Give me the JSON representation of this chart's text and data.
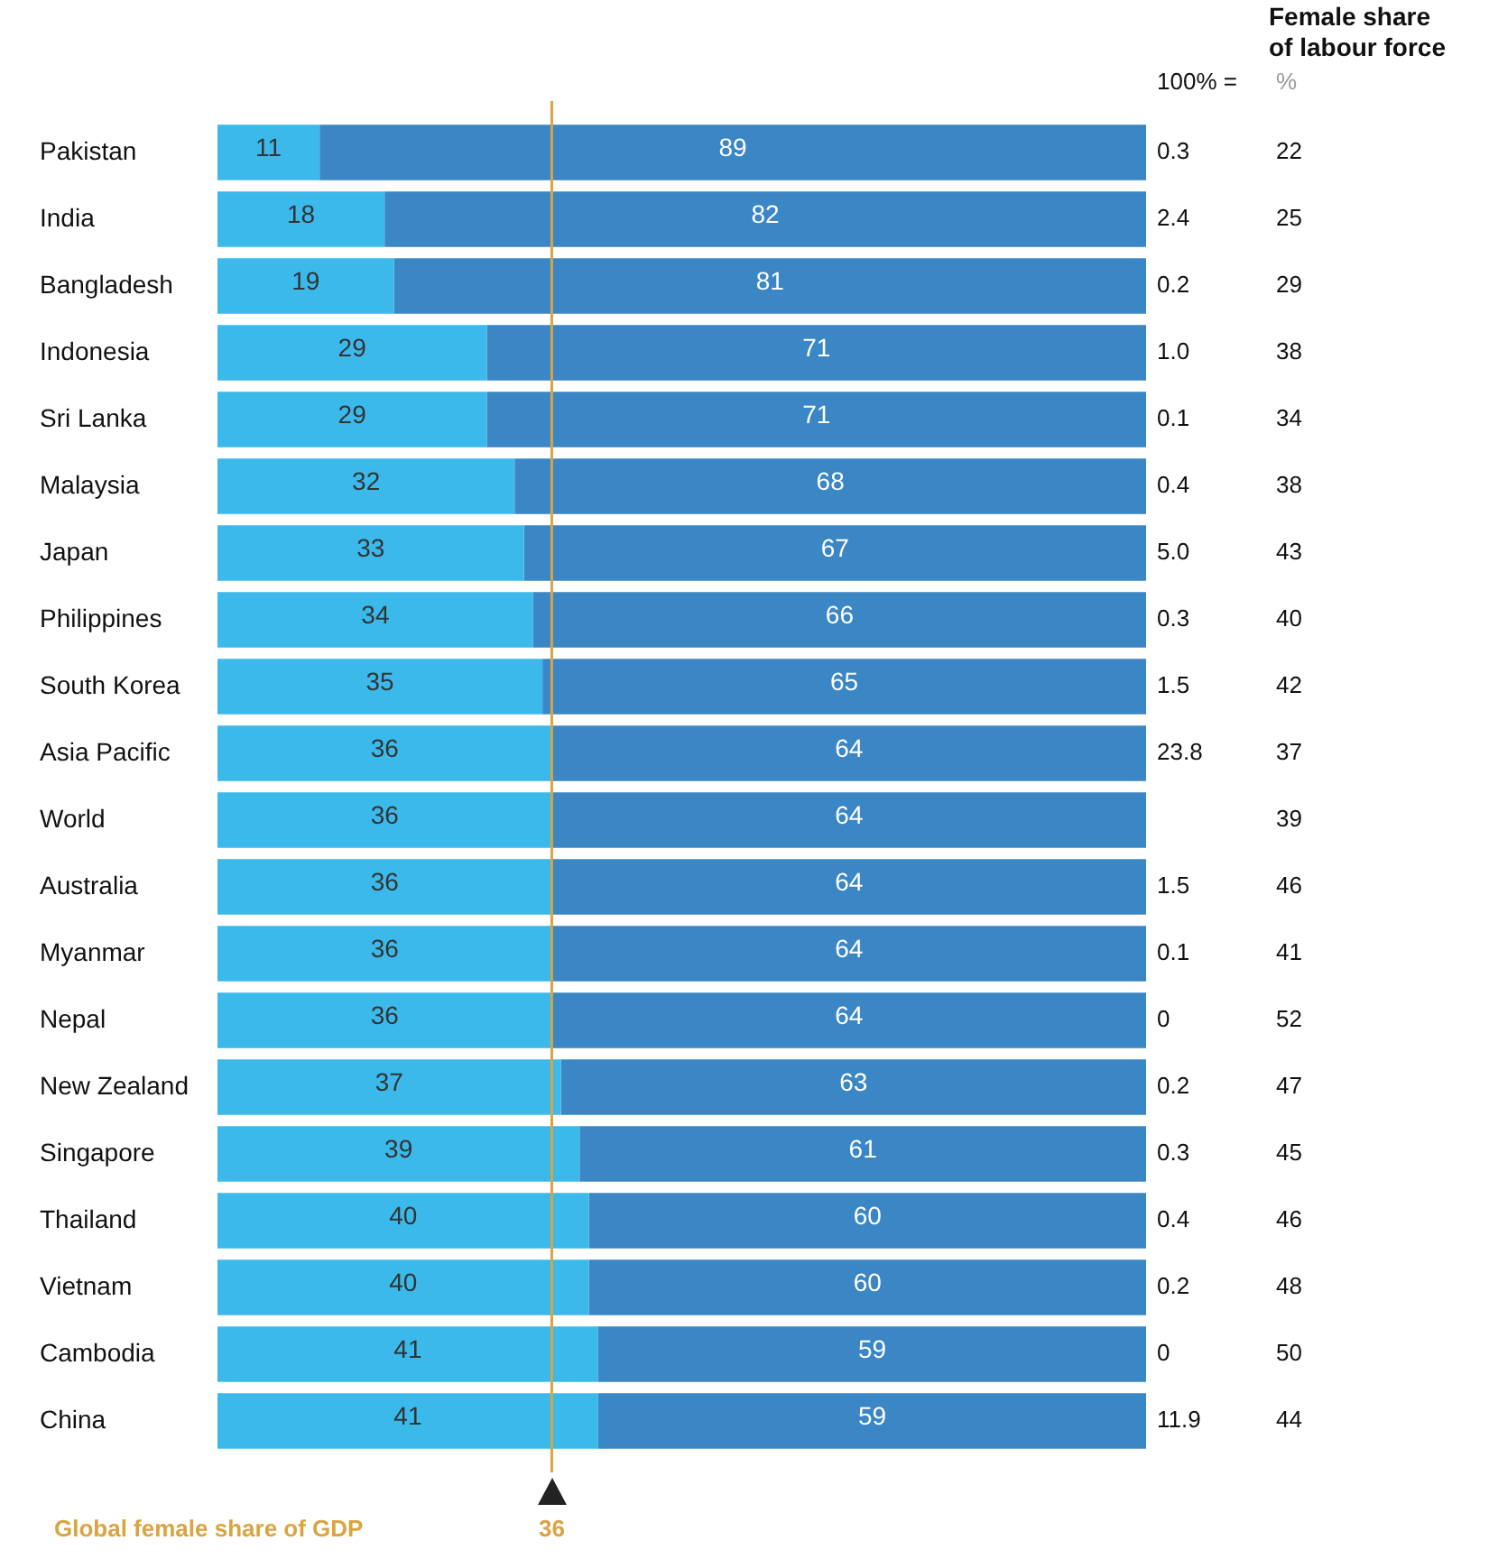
{
  "chart_data": {
    "type": "bar",
    "orientation": "horizontal",
    "stacked": true,
    "data_labels": true,
    "grid": false,
    "legend": false,
    "tick_labels": "y",
    "xlim": [
      0,
      100
    ],
    "categories": [
      "Pakistan",
      "India",
      "Bangladesh",
      "Indonesia",
      "Sri Lanka",
      "Malaysia",
      "Japan",
      "Philippines",
      "South Korea",
      "Asia Pacific",
      "World",
      "Australia",
      "Myanmar",
      "Nepal",
      "New Zealand",
      "Singapore",
      "Thailand",
      "Vietnam",
      "Cambodia",
      "China"
    ],
    "series": [
      {
        "color": "#3bb9eb",
        "values": [
          11,
          18,
          19,
          29,
          29,
          32,
          33,
          34,
          35,
          36,
          36,
          36,
          36,
          36,
          37,
          39,
          40,
          40,
          41,
          41
        ]
      },
      {
        "color": "#3b86c4",
        "values": [
          89,
          82,
          81,
          71,
          71,
          68,
          67,
          66,
          65,
          64,
          64,
          64,
          64,
          64,
          63,
          61,
          60,
          60,
          59,
          59
        ]
      }
    ],
    "ref_lines": [
      {
        "axis": "x",
        "value": 36,
        "label": "Global female share of GDP",
        "color": "#d9a441"
      }
    ],
    "annotations": [
      "100% =",
      "Female share of labour force",
      "%",
      "0.3",
      "2.4",
      "0.2",
      "1.0",
      "0.1",
      "0.4",
      "5.0",
      "0.3",
      "1.5",
      "23.8",
      null,
      "1.5",
      "0.1",
      "0",
      "0.2",
      "0.3",
      "0.4",
      "0.2",
      "0",
      "11.9",
      "22",
      "25",
      "29",
      "38",
      "34",
      "38",
      "43",
      "40",
      "42",
      "37",
      "39",
      "46",
      "41",
      "52",
      "47",
      "45",
      "46",
      "48",
      "50",
      "44",
      "36"
    ]
  }
}
